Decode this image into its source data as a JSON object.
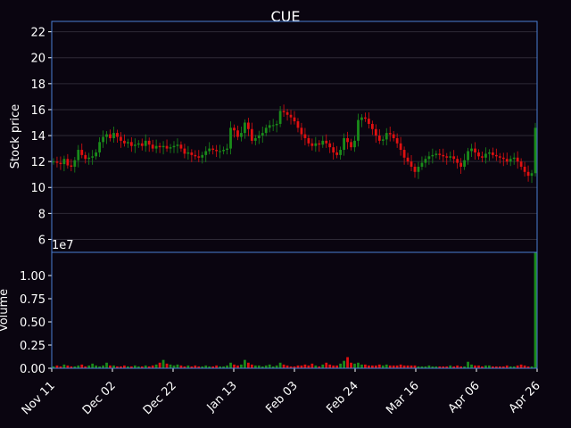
{
  "chart_data": {
    "type": "candlestick",
    "title": "CUE",
    "price_panel": {
      "ylabel": "Stock price",
      "ylim": [
        5,
        22.8
      ],
      "yticks": [
        6,
        8,
        10,
        12,
        14,
        16,
        18,
        20,
        22
      ],
      "grid": true
    },
    "volume_panel": {
      "ylabel": "Volume",
      "scale_label": "1e7",
      "ylim": [
        0,
        1.25
      ],
      "yticks": [
        "0.00",
        "0.25",
        "0.50",
        "0.75",
        "1.00"
      ]
    },
    "x_ticks": [
      "Nov 11",
      "Dec 02",
      "Dec 22",
      "Jan 13",
      "Feb 03",
      "Feb 24",
      "Mar 16",
      "Apr 06",
      "Apr 26"
    ],
    "up_color": "#1a8c1a",
    "down_color": "#e01010",
    "frame_color": "#4a7fd4",
    "closes": [
      12.0,
      11.9,
      11.8,
      12.2,
      11.7,
      11.6,
      12.1,
      12.9,
      12.5,
      12.2,
      12.3,
      12.4,
      12.7,
      13.5,
      13.9,
      14.1,
      13.8,
      14.2,
      13.9,
      13.6,
      13.4,
      13.5,
      13.2,
      13.3,
      13.4,
      13.2,
      13.6,
      13.3,
      13.0,
      13.2,
      13.1,
      13.2,
      13.0,
      13.1,
      13.2,
      13.3,
      13.0,
      12.6,
      12.7,
      12.5,
      12.4,
      12.3,
      12.5,
      12.8,
      13.0,
      12.9,
      12.8,
      12.8,
      12.9,
      13.0,
      14.6,
      14.4,
      13.9,
      14.2,
      15.0,
      14.5,
      13.6,
      13.8,
      14.0,
      14.2,
      14.6,
      14.8,
      14.8,
      14.9,
      15.9,
      15.8,
      15.6,
      15.4,
      15.1,
      14.6,
      14.1,
      13.8,
      13.4,
      13.2,
      13.4,
      13.3,
      13.6,
      13.4,
      13.1,
      12.7,
      12.5,
      12.9,
      13.8,
      13.5,
      13.1,
      13.6,
      15.2,
      15.4,
      15.3,
      14.9,
      14.5,
      14.0,
      13.6,
      13.7,
      14.2,
      14.1,
      13.8,
      13.4,
      12.9,
      12.3,
      12.0,
      11.6,
      11.2,
      11.6,
      11.9,
      12.2,
      12.4,
      12.5,
      12.6,
      12.5,
      12.4,
      12.3,
      12.4,
      12.2,
      11.9,
      11.6,
      12.1,
      12.8,
      13.0,
      12.7,
      12.4,
      12.3,
      12.6,
      12.7,
      12.5,
      12.4,
      12.3,
      12.2,
      12.0,
      12.2,
      12.3,
      12.0,
      11.6,
      11.2,
      10.9,
      11.1,
      14.6
    ],
    "volumes": [
      0.02,
      0.03,
      0.02,
      0.04,
      0.03,
      0.02,
      0.02,
      0.03,
      0.04,
      0.02,
      0.03,
      0.05,
      0.03,
      0.02,
      0.03,
      0.06,
      0.03,
      0.03,
      0.02,
      0.02,
      0.03,
      0.02,
      0.02,
      0.03,
      0.02,
      0.02,
      0.03,
      0.02,
      0.03,
      0.04,
      0.06,
      0.09,
      0.05,
      0.04,
      0.03,
      0.04,
      0.03,
      0.02,
      0.03,
      0.02,
      0.03,
      0.02,
      0.02,
      0.03,
      0.02,
      0.02,
      0.03,
      0.02,
      0.02,
      0.03,
      0.06,
      0.04,
      0.03,
      0.04,
      0.09,
      0.06,
      0.04,
      0.03,
      0.03,
      0.02,
      0.03,
      0.04,
      0.02,
      0.03,
      0.06,
      0.04,
      0.03,
      0.02,
      0.02,
      0.03,
      0.03,
      0.04,
      0.03,
      0.05,
      0.03,
      0.02,
      0.04,
      0.06,
      0.04,
      0.03,
      0.03,
      0.05,
      0.08,
      0.12,
      0.06,
      0.05,
      0.06,
      0.04,
      0.04,
      0.03,
      0.03,
      0.03,
      0.04,
      0.03,
      0.04,
      0.03,
      0.03,
      0.03,
      0.04,
      0.03,
      0.03,
      0.03,
      0.03,
      0.02,
      0.02,
      0.02,
      0.03,
      0.02,
      0.02,
      0.02,
      0.02,
      0.02,
      0.03,
      0.02,
      0.03,
      0.02,
      0.02,
      0.07,
      0.04,
      0.03,
      0.03,
      0.02,
      0.03,
      0.03,
      0.02,
      0.02,
      0.02,
      0.02,
      0.03,
      0.02,
      0.02,
      0.03,
      0.04,
      0.03,
      0.02,
      0.02,
      1.25
    ]
  }
}
